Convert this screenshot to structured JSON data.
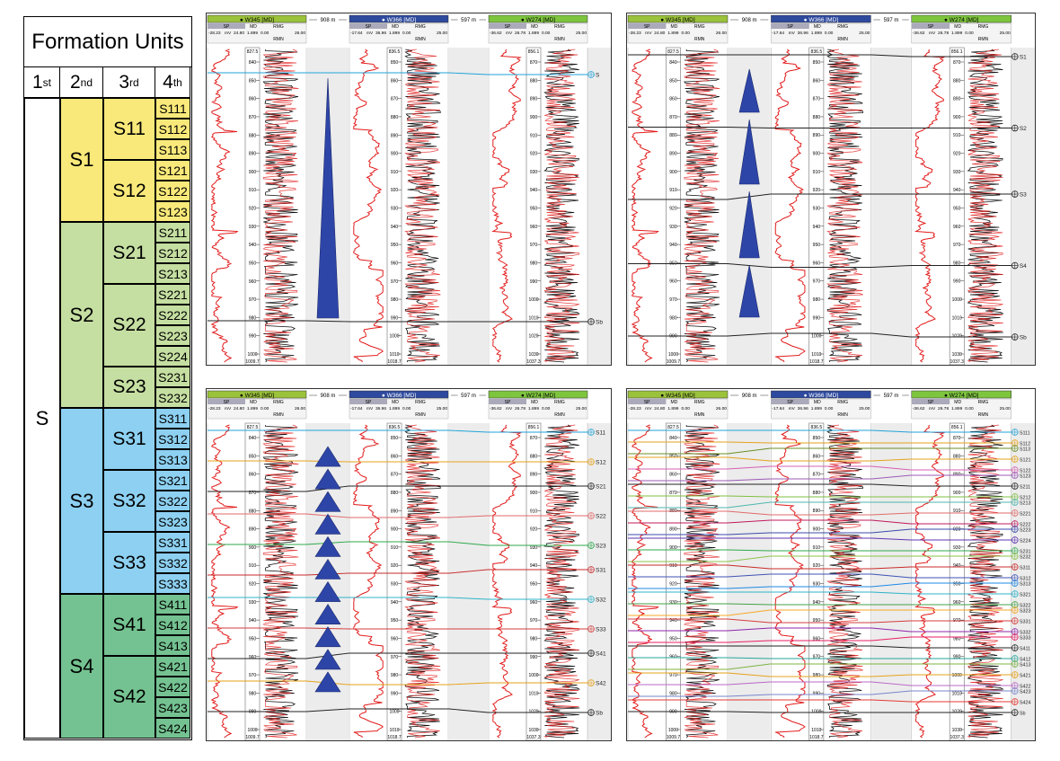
{
  "table": {
    "title": "Formation Units",
    "headers": [
      {
        "main": "1",
        "sup": "st"
      },
      {
        "main": "2",
        "sup": "nd"
      },
      {
        "main": "3",
        "sup": "rd"
      },
      {
        "main": "4",
        "sup": "th"
      }
    ],
    "first": "S",
    "groups": [
      {
        "name": "S1",
        "color": "#f9e97a",
        "subs": [
          {
            "name": "S11",
            "units": [
              "S111",
              "S112",
              "S113"
            ]
          },
          {
            "name": "S12",
            "units": [
              "S121",
              "S122",
              "S123"
            ]
          }
        ]
      },
      {
        "name": "S2",
        "color": "#c5dea1",
        "subs": [
          {
            "name": "S21",
            "units": [
              "S211",
              "S212",
              "S213"
            ]
          },
          {
            "name": "S22",
            "units": [
              "S221",
              "S222",
              "S223",
              "S224"
            ]
          },
          {
            "name": "S23",
            "units": [
              "S231",
              "S232"
            ]
          }
        ]
      },
      {
        "name": "S3",
        "color": "#8dd0f1",
        "subs": [
          {
            "name": "S31",
            "units": [
              "S311",
              "S312",
              "S313"
            ]
          },
          {
            "name": "S32",
            "units": [
              "S321",
              "S322",
              "S323"
            ]
          },
          {
            "name": "S33",
            "units": [
              "S331",
              "S332",
              "S333"
            ]
          }
        ]
      },
      {
        "name": "S4",
        "color": "#74c291",
        "subs": [
          {
            "name": "S41",
            "units": [
              "S411",
              "S412",
              "S413"
            ]
          },
          {
            "name": "S42",
            "units": [
              "S421",
              "S422",
              "S423",
              "S424"
            ]
          }
        ]
      }
    ]
  },
  "wells": [
    {
      "name": "W345 [MD]",
      "color": "#9bc23b",
      "sp": "SP",
      "md": "MD",
      "rmg": "RMG",
      "rmn": "RMN",
      "sp_range": [
        "-28.23",
        "mV",
        "24.80"
      ],
      "rmg_range": [
        "1.899",
        "0.00",
        "26.00"
      ],
      "top": "827.5",
      "bottom": "1009.7",
      "ticks": [
        "840",
        "850",
        "860",
        "870",
        "880",
        "890",
        "900",
        "910",
        "920",
        "930",
        "940",
        "950",
        "960",
        "970",
        "980",
        "990",
        "1000"
      ]
    },
    {
      "name": "W366 [MD]",
      "color": "#2e4a9e",
      "sp": "SP",
      "md": "MD",
      "rmg": "RMG",
      "rmn": "RMN",
      "sp_range": [
        "-17.64",
        "mV",
        "36.96"
      ],
      "rmg_range": [
        "1.899",
        "0.00",
        "25.00"
      ],
      "top": "836.5",
      "bottom": "1018.7",
      "ticks": [
        "850",
        "860",
        "870",
        "880",
        "890",
        "900",
        "910",
        "920",
        "930",
        "940",
        "950",
        "960",
        "970",
        "980",
        "990",
        "1000",
        "1010"
      ]
    },
    {
      "name": "W274 [MD]",
      "color": "#7ec53e",
      "sp": "SP",
      "md": "MD",
      "rmg": "RMG",
      "rmn": "RMN",
      "sp_range": [
        "-36.62",
        "mV",
        "26.78"
      ],
      "rmg_range": [
        "1.899",
        "0.00",
        "25.00"
      ],
      "top": "856.1",
      "bottom": "1037.3",
      "ticks": [
        "870",
        "880",
        "890",
        "900",
        "910",
        "920",
        "930",
        "940",
        "950",
        "960",
        "970",
        "980",
        "990",
        "1000",
        "1010",
        "1020",
        "1030"
      ]
    }
  ],
  "gaps": [
    "908 m",
    "597 m"
  ],
  "panels": [
    {
      "markers": [
        {
          "label": "S",
          "color": "#1fa3d8"
        },
        {
          "label": "Sb",
          "color": "#222222"
        }
      ]
    },
    {
      "markers": [
        {
          "label": "S1",
          "color": "#222222"
        },
        {
          "label": "S2",
          "color": "#222222"
        },
        {
          "label": "S3",
          "color": "#222222"
        },
        {
          "label": "S4",
          "color": "#222222"
        },
        {
          "label": "Sb",
          "color": "#222222"
        }
      ]
    },
    {
      "markers": [
        {
          "label": "S11",
          "color": "#1fa3d8"
        },
        {
          "label": "S12",
          "color": "#e6a21a"
        },
        {
          "label": "S21",
          "color": "#222222"
        },
        {
          "label": "S22",
          "color": "#e26a6a"
        },
        {
          "label": "S23",
          "color": "#2ea84a"
        },
        {
          "label": "S31",
          "color": "#c92a2a"
        },
        {
          "label": "S32",
          "color": "#2cb3c9"
        },
        {
          "label": "S33",
          "color": "#d63c3c"
        },
        {
          "label": "S41",
          "color": "#222222"
        },
        {
          "label": "S42",
          "color": "#e6a21a"
        },
        {
          "label": "Sb",
          "color": "#222222"
        }
      ]
    },
    {
      "markers": [
        {
          "label": "S111",
          "color": "#1fa3d8"
        },
        {
          "label": "S112",
          "color": "#e6a21a"
        },
        {
          "label": "S113",
          "color": "#6b8e23"
        },
        {
          "label": "S121",
          "color": "#e6a21a"
        },
        {
          "label": "S122",
          "color": "#d65fb1"
        },
        {
          "label": "S123",
          "color": "#9b59b6"
        },
        {
          "label": "S211",
          "color": "#222222"
        },
        {
          "label": "S212",
          "color": "#7fbf3f"
        },
        {
          "label": "S213",
          "color": "#4db6ac"
        },
        {
          "label": "S221",
          "color": "#e26a6a"
        },
        {
          "label": "S222",
          "color": "#c2185b"
        },
        {
          "label": "S223",
          "color": "#3949ab"
        },
        {
          "label": "S224",
          "color": "#5e35b1"
        },
        {
          "label": "S231",
          "color": "#2ea84a"
        },
        {
          "label": "S232",
          "color": "#8bc34a"
        },
        {
          "label": "S311",
          "color": "#c92a2a"
        },
        {
          "label": "S312",
          "color": "#3f51b5"
        },
        {
          "label": "S313",
          "color": "#1e88e5"
        },
        {
          "label": "S321",
          "color": "#2cb3c9"
        },
        {
          "label": "S322",
          "color": "#43a047"
        },
        {
          "label": "S323",
          "color": "#f9a825"
        },
        {
          "label": "S331",
          "color": "#d63c3c"
        },
        {
          "label": "S332",
          "color": "#8e24aa"
        },
        {
          "label": "S333",
          "color": "#e91e63"
        },
        {
          "label": "S411",
          "color": "#222222"
        },
        {
          "label": "S412",
          "color": "#26a69a"
        },
        {
          "label": "S413",
          "color": "#7cb342"
        },
        {
          "label": "S421",
          "color": "#e6a21a"
        },
        {
          "label": "S422",
          "color": "#ba68c8"
        },
        {
          "label": "S423",
          "color": "#7986cb"
        },
        {
          "label": "S424",
          "color": "#e53935"
        },
        {
          "label": "Sb",
          "color": "#222222"
        }
      ]
    }
  ]
}
